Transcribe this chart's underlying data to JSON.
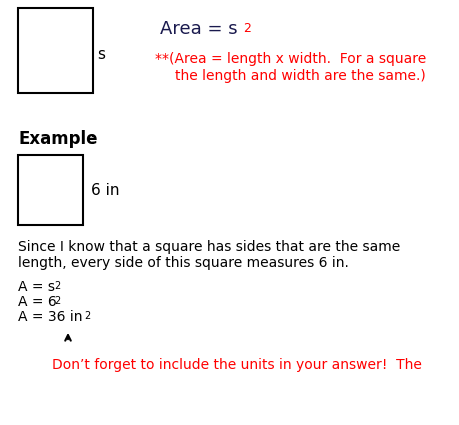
{
  "bg_color": "#ffffff",
  "note_line1": "**(Area = length x width.  For a square",
  "note_line2": "the length and width are the same.)",
  "example_label": "Example",
  "colon": ":",
  "six_in_label": "6 in",
  "para_line1": "Since I know that a square has sides that are the same",
  "para_line2": "length, every side of this square measures 6 in.",
  "eq1_base": "A = s",
  "eq2_base": "A = 6",
  "eq3_base": "A = 36 in",
  "super": "2",
  "area_base": "Area = s",
  "arrow_note": "Don’t forget to include the units in your answer!  The",
  "red_color": "#ff0000",
  "black_color": "#000000",
  "dark_color": "#1a1a4e",
  "font_family": "DejaVu Sans"
}
